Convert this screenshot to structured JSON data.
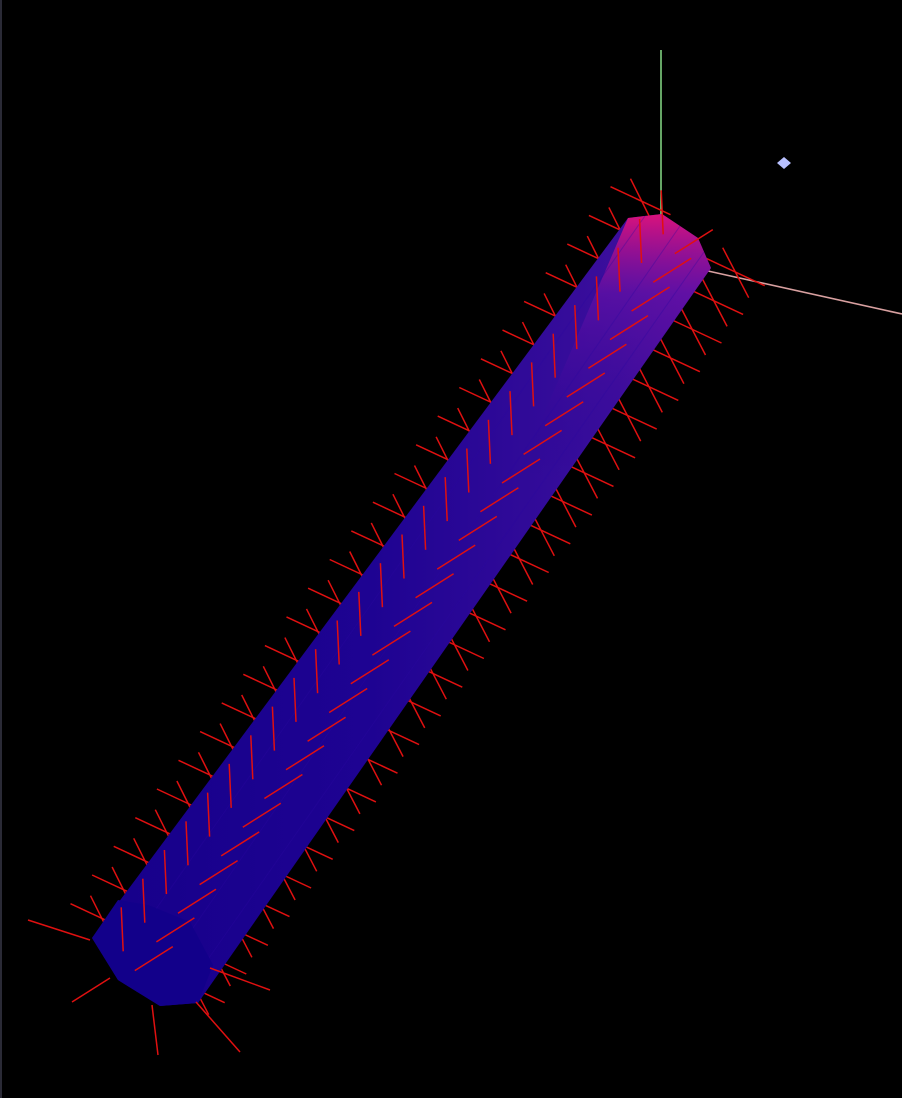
{
  "scene": {
    "background": "#000000",
    "body_color_dark": "#17008c",
    "body_color_mid": "#3a0e9a",
    "body_color_hot": "#e0107a",
    "end_cap_color": "#12008a",
    "spike_color": "#e01010",
    "axis_x_color": "#e0a0a0",
    "axis_y_color": "#80e080",
    "light_marker_color": "#b8c0ff",
    "icon_names": {
      "axes": "axes-gizmo-icon",
      "light": "light-marker-icon"
    }
  }
}
